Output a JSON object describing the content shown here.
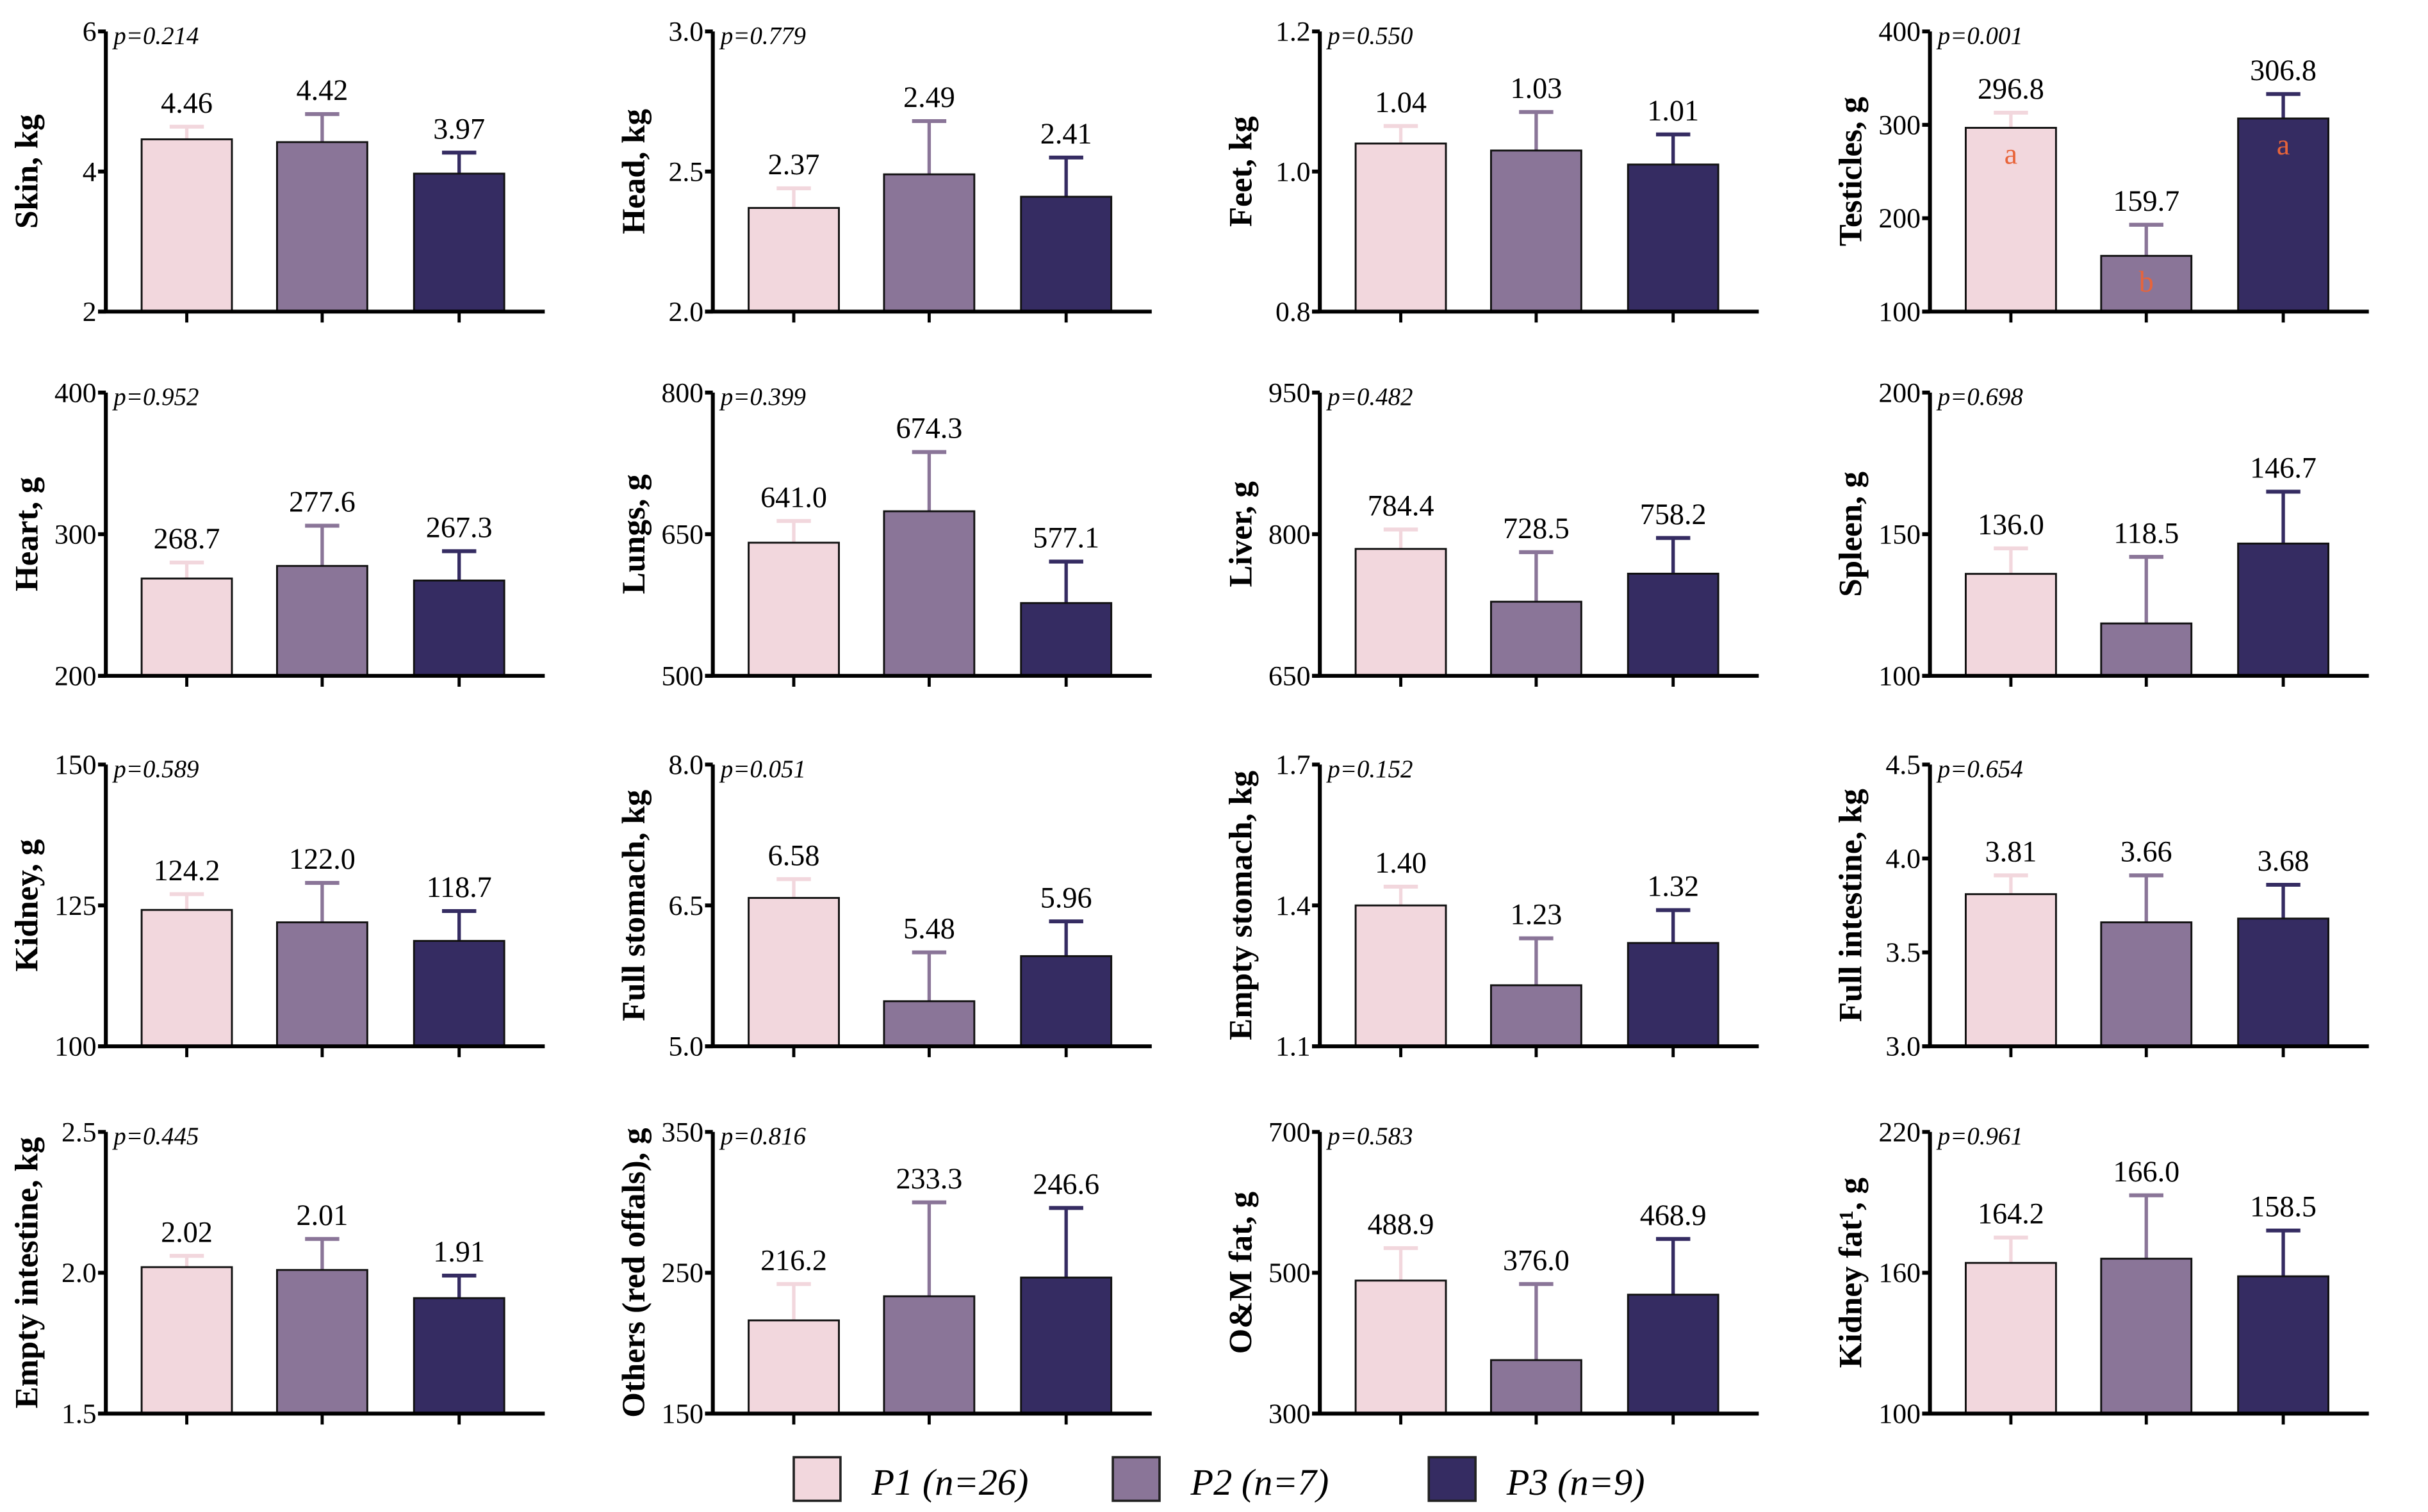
{
  "legend": [
    {
      "label": "P1 (n=26)",
      "color": "#f2d7dd"
    },
    {
      "label": "P2 (n=7)",
      "color": "#8a7598"
    },
    {
      "label": "P3 (n=9)",
      "color": "#352c62"
    }
  ],
  "letter_color": "#e8643a",
  "chart_data": [
    {
      "type": "bar",
      "ylabel": "Skin, kg",
      "p": "p=0.214",
      "ylim": [
        2,
        6
      ],
      "yticks": [
        "2",
        "4",
        "6"
      ],
      "values": [
        4.46,
        4.42,
        3.97
      ],
      "labels": [
        "4.46",
        "4.42",
        "3.97"
      ],
      "err_top": [
        4.64,
        4.82,
        4.27
      ]
    },
    {
      "type": "bar",
      "ylabel": "Head, kg",
      "p": "p=0.779",
      "ylim": [
        2.0,
        3.0
      ],
      "yticks": [
        "2.0",
        "2.5",
        "3.0"
      ],
      "values": [
        2.37,
        2.49,
        2.41
      ],
      "labels": [
        "2.37",
        "2.49",
        "2.41"
      ],
      "err_top": [
        2.44,
        2.68,
        2.55
      ]
    },
    {
      "type": "bar",
      "ylabel": "Feet, kg",
      "p": "p=0.550",
      "ylim": [
        0.8,
        1.2
      ],
      "yticks": [
        "0.8",
        "1.0",
        "1.2"
      ],
      "values": [
        1.04,
        1.03,
        1.01
      ],
      "labels": [
        "1.04",
        "1.03",
        "1.01"
      ],
      "err_top": [
        1.065,
        1.085,
        1.053
      ]
    },
    {
      "type": "bar",
      "ylabel": "Testicles, g",
      "p": "p=0.001",
      "ylim": [
        100,
        400
      ],
      "yticks": [
        "100",
        "200",
        "300",
        "400"
      ],
      "values": [
        296.8,
        159.7,
        306.8
      ],
      "labels": [
        "296.8",
        "159.7",
        "306.8"
      ],
      "err_top": [
        313,
        193,
        333
      ],
      "letters": [
        "a",
        "b",
        "a"
      ]
    },
    {
      "type": "bar",
      "ylabel": "Heart, g",
      "p": "p=0.952",
      "ylim": [
        200,
        400
      ],
      "yticks": [
        "200",
        "300",
        "400"
      ],
      "values": [
        268.7,
        277.6,
        267.3
      ],
      "labels": [
        "268.7",
        "277.6",
        "267.3"
      ],
      "err_top": [
        280,
        306,
        288
      ]
    },
    {
      "type": "bar",
      "ylabel": "Lungs, g",
      "p": "p=0.399",
      "ylim": [
        500,
        800
      ],
      "yticks": [
        "500",
        "650",
        "800"
      ],
      "values": [
        641.0,
        674.3,
        577.1
      ],
      "labels": [
        "641.0",
        "674.3",
        "577.1"
      ],
      "err_top": [
        664,
        737,
        621
      ]
    },
    {
      "type": "bar",
      "ylabel": "Liver, g",
      "p": "p=0.482",
      "ylim": [
        650,
        950
      ],
      "yticks": [
        "650",
        "800",
        "950"
      ],
      "values": [
        784.4,
        728.5,
        758.2
      ],
      "labels": [
        "784.4",
        "728.5",
        "758.2"
      ],
      "err_top": [
        805,
        781,
        796
      ]
    },
    {
      "type": "bar",
      "ylabel": "Spleen, g",
      "p": "p=0.698",
      "ylim": [
        100,
        200
      ],
      "yticks": [
        "100",
        "150",
        "200"
      ],
      "values": [
        136.0,
        118.5,
        146.7
      ],
      "labels": [
        "136.0",
        "118.5",
        "146.7"
      ],
      "err_top": [
        145,
        142,
        165
      ]
    },
    {
      "type": "bar",
      "ylabel": "Kidney, g",
      "p": "p=0.589",
      "ylim": [
        100,
        150
      ],
      "yticks": [
        "100",
        "125",
        "150"
      ],
      "values": [
        124.2,
        122.0,
        118.7
      ],
      "labels": [
        "124.2",
        "122.0",
        "118.7"
      ],
      "err_top": [
        127,
        129,
        124
      ]
    },
    {
      "type": "bar",
      "ylabel": "Full stomach, kg",
      "p": "p=0.051",
      "ylim": [
        5.0,
        8.0
      ],
      "yticks": [
        "5.0",
        "6.5",
        "8.0"
      ],
      "values": [
        6.58,
        5.48,
        5.96
      ],
      "labels": [
        "6.58",
        "5.48",
        "5.96"
      ],
      "err_top": [
        6.78,
        6.0,
        6.33
      ]
    },
    {
      "type": "bar",
      "ylabel": "Empty stomach, kg",
      "p": "p=0.152",
      "ylim": [
        1.1,
        1.7
      ],
      "yticks": [
        "1.1",
        "1.4",
        "1.7"
      ],
      "values": [
        1.4,
        1.23,
        1.32
      ],
      "labels": [
        "1.40",
        "1.23",
        "1.32"
      ],
      "err_top": [
        1.44,
        1.33,
        1.39
      ]
    },
    {
      "type": "bar",
      "ylabel": "Full intestine, kg",
      "p": "p=0.654",
      "ylim": [
        3.0,
        4.5
      ],
      "yticks": [
        "3.0",
        "3.5",
        "4.0",
        "4.5"
      ],
      "values": [
        3.81,
        3.66,
        3.68
      ],
      "labels": [
        "3.81",
        "3.66",
        "3.68"
      ],
      "err_top": [
        3.91,
        3.91,
        3.86
      ]
    },
    {
      "type": "bar",
      "ylabel": "Empty intestine, kg",
      "p": "p=0.445",
      "ylim": [
        1.5,
        2.5
      ],
      "yticks": [
        "1.5",
        "2.0",
        "2.5"
      ],
      "values": [
        2.02,
        2.01,
        1.91
      ],
      "labels": [
        "2.02",
        "2.01",
        "1.91"
      ],
      "err_top": [
        2.06,
        2.12,
        1.99
      ]
    },
    {
      "type": "bar",
      "ylabel": "Others (red offals), g",
      "p": "p=0.816",
      "ylim": [
        150,
        350
      ],
      "yticks": [
        "150",
        "250",
        "350"
      ],
      "values": [
        216.2,
        233.3,
        246.6
      ],
      "labels": [
        "216.2",
        "233.3",
        "246.6"
      ],
      "err_top": [
        242,
        300,
        296
      ]
    },
    {
      "type": "bar",
      "ylabel": "O&M fat, g",
      "p": "p=0.583",
      "ylim": [
        300,
        700
      ],
      "yticks": [
        "300",
        "500",
        "700"
      ],
      "values": [
        488.9,
        376.0,
        468.9
      ],
      "labels": [
        "488.9",
        "376.0",
        "468.9"
      ],
      "err_top": [
        535,
        484,
        548
      ]
    },
    {
      "type": "bar",
      "ylabel": "Kidney fat¹, g",
      "p": "p=0.961",
      "ylim": [
        100,
        220
      ],
      "yticks": [
        "100",
        "160",
        "220"
      ],
      "values": [
        164.2,
        166.0,
        158.5
      ],
      "labels": [
        "164.2",
        "166.0",
        "158.5"
      ],
      "err_top": [
        175,
        193,
        178
      ]
    }
  ]
}
